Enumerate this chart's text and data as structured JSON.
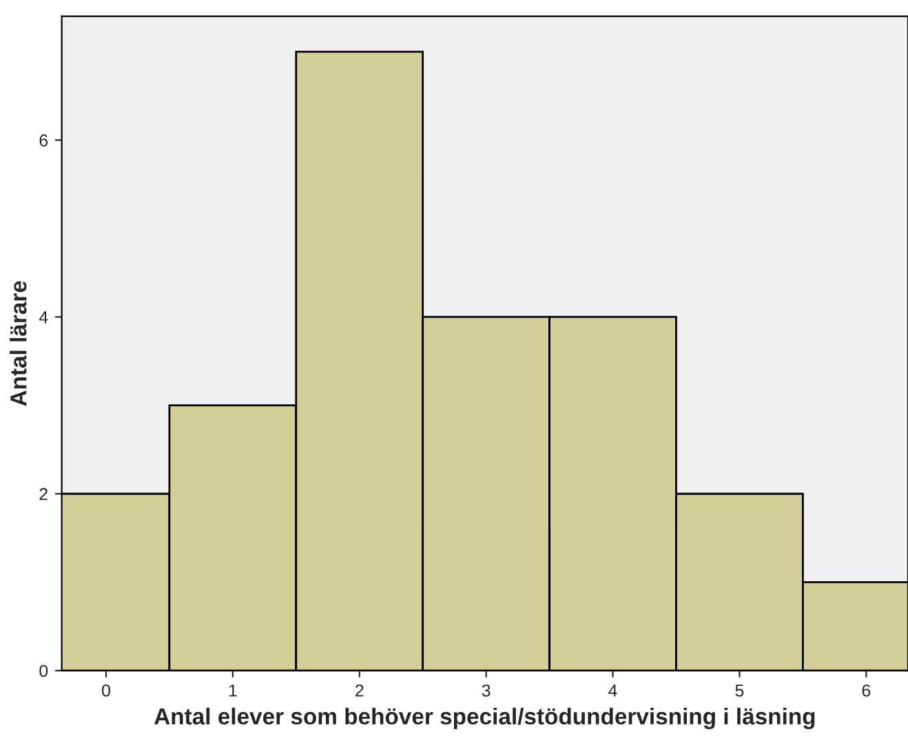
{
  "chart_data": {
    "type": "histogram",
    "bins": [
      -0.5,
      0.5,
      1.5,
      2.5,
      3.5,
      4.5,
      5.5,
      6.5
    ],
    "values": [
      2,
      3,
      7,
      4,
      4,
      2,
      1
    ],
    "color": "#d3ce97",
    "xlabel": "Antal elever som behöver special/stödundervisning i läsning",
    "ylabel": "Antal lärare",
    "xlim": [
      -0.35,
      6.33
    ],
    "xticks": [
      0,
      1,
      2,
      3,
      4,
      5,
      6
    ],
    "ylim": [
      0,
      7.4
    ],
    "yticks": [
      0,
      2,
      4,
      6
    ],
    "grid": false
  }
}
